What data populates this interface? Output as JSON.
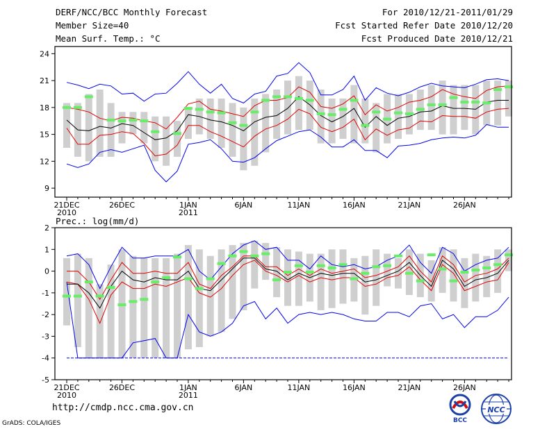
{
  "header": {
    "title": "DERF/NCC/BCC Monthly Forecast",
    "member_size": "Member Size=40",
    "variable": "Mean Surf. Temp.: °C",
    "period": "For 2010/12/21-2011/01/29",
    "started": "Fcst Started Refer Date 2010/12/20",
    "produced": "Fcst Produced Date 2010/12/21"
  },
  "footer": {
    "url": "http://cmdp.ncc.cma.gov.cn",
    "credit": "GrADS: COLA/IGES"
  },
  "logos": {
    "bcc": "BCC",
    "ncc": "NCC"
  },
  "colors": {
    "box": "#cfcfcf",
    "obs": "#66ee66",
    "mean": "#000000",
    "spread": "#e00000",
    "extreme": "#0000ee"
  },
  "chart_data": [
    {
      "type": "line",
      "title": "Mean Surf. Temp.: °C",
      "x_labels": [
        {
          "day": 0,
          "label": "21DEC",
          "sub": "2010"
        },
        {
          "day": 5,
          "label": "26DEC",
          "sub": ""
        },
        {
          "day": 11,
          "label": "1JAN",
          "sub": "2011"
        },
        {
          "day": 16,
          "label": "6JAN",
          "sub": ""
        },
        {
          "day": 21,
          "label": "11JAN",
          "sub": ""
        },
        {
          "day": 26,
          "label": "16JAN",
          "sub": ""
        },
        {
          "day": 31,
          "label": "21JAN",
          "sub": ""
        },
        {
          "day": 36,
          "label": "26JAN",
          "sub": ""
        }
      ],
      "yticks": [
        9,
        12,
        15,
        18,
        21,
        24
      ],
      "ylim": [
        8,
        24.8
      ],
      "series": {
        "box_high": [
          18.5,
          18.5,
          19.5,
          20.0,
          18.5,
          17.5,
          17.5,
          17.5,
          17.0,
          17.0,
          16.5,
          18.0,
          19.0,
          19.0,
          19.0,
          18.5,
          18.0,
          19.0,
          19.5,
          20.0,
          21.0,
          21.5,
          21.0,
          20.0,
          19.0,
          19.0,
          20.5,
          19.0,
          18.5,
          19.5,
          19.5,
          19.5,
          20.0,
          20.5,
          21.0,
          20.5,
          20.5,
          20.5,
          21.0,
          21.0,
          21.0
        ],
        "box_low": [
          13.5,
          12.5,
          12.0,
          12.5,
          12.5,
          14.0,
          15.0,
          14.0,
          12.0,
          11.5,
          12.5,
          14.5,
          15.0,
          14.5,
          13.5,
          12.5,
          11.0,
          11.5,
          13.0,
          14.5,
          15.0,
          15.5,
          15.5,
          14.0,
          14.0,
          14.5,
          14.0,
          14.0,
          13.0,
          14.0,
          14.5,
          15.0,
          15.5,
          15.5,
          15.0,
          15.0,
          15.5,
          15.0,
          16.0,
          16.0,
          17.0
        ],
        "obs": [
          18.0,
          18.0,
          19.2,
          null,
          16.6,
          16.5,
          16.6,
          16.5,
          15.3,
          null,
          15.1,
          17.9,
          17.8,
          17.5,
          17.4,
          16.3,
          16.0,
          17.5,
          18.8,
          19.2,
          19.2,
          19.0,
          18.8,
          17.3,
          17.2,
          17.8,
          18.8,
          16.0,
          17.5,
          16.7,
          17.4,
          17.3,
          17.8,
          18.3,
          18.3,
          19.1,
          18.6,
          18.6,
          18.5,
          20.0,
          20.3
        ],
        "max": [
          20.8,
          20.5,
          20.1,
          20.6,
          20.4,
          19.5,
          19.6,
          18.7,
          19.5,
          19.6,
          20.7,
          22.0,
          20.6,
          19.6,
          20.6,
          19.0,
          18.5,
          19.5,
          19.8,
          21.5,
          21.8,
          23.0,
          21.9,
          19.4,
          19.4,
          20.0,
          21.5,
          18.8,
          20.2,
          19.6,
          19.3,
          19.7,
          20.3,
          20.7,
          20.4,
          20.3,
          20.2,
          20.6,
          21.1,
          21.2,
          21.0
        ],
        "upper": [
          18.0,
          17.8,
          17.5,
          16.8,
          16.5,
          16.9,
          16.8,
          16.5,
          16.3,
          15.6,
          16.9,
          18.4,
          18.7,
          17.8,
          17.6,
          17.3,
          17.0,
          18.2,
          18.8,
          18.8,
          19.1,
          20.3,
          19.7,
          18.1,
          17.9,
          18.4,
          19.3,
          17.2,
          18.3,
          17.6,
          18.0,
          18.6,
          18.8,
          19.2,
          20.0,
          19.5,
          19.2,
          19.0,
          19.9,
          20.3,
          20.4
        ],
        "mean": [
          16.6,
          15.5,
          15.4,
          15.9,
          15.7,
          16.2,
          16.0,
          15.2,
          14.4,
          14.6,
          15.4,
          17.2,
          17.0,
          16.6,
          16.4,
          16.0,
          15.4,
          16.4,
          16.9,
          17.1,
          17.9,
          19.2,
          18.3,
          17.1,
          16.4,
          17.0,
          17.9,
          15.8,
          17.0,
          16.0,
          16.8,
          17.0,
          17.5,
          17.6,
          18.2,
          17.9,
          17.9,
          17.8,
          18.6,
          18.8,
          18.8
        ],
        "lower": [
          15.7,
          13.9,
          13.9,
          14.9,
          15.0,
          15.3,
          15.1,
          14.0,
          12.6,
          12.8,
          13.8,
          16.0,
          16.0,
          15.3,
          14.8,
          14.2,
          13.6,
          14.8,
          15.6,
          16.0,
          16.7,
          17.8,
          17.3,
          15.8,
          15.3,
          15.8,
          16.7,
          14.4,
          15.6,
          14.9,
          15.5,
          15.7,
          16.5,
          16.4,
          17.1,
          17.0,
          17.0,
          16.8,
          17.5,
          17.8,
          17.9
        ],
        "min": [
          11.7,
          11.3,
          11.7,
          13.0,
          13.3,
          13.0,
          13.4,
          13.8,
          11.0,
          9.7,
          10.9,
          13.9,
          14.1,
          14.4,
          13.4,
          12.0,
          11.9,
          12.4,
          13.4,
          14.3,
          14.8,
          15.3,
          15.5,
          14.7,
          13.6,
          13.6,
          14.4,
          13.2,
          13.2,
          12.4,
          13.7,
          13.8,
          14.0,
          14.4,
          14.6,
          14.7,
          14.6,
          14.9,
          16.1,
          15.8,
          15.8
        ]
      }
    },
    {
      "type": "line",
      "title": "Prec.: log(mm/d)",
      "x_labels": [
        {
          "day": 0,
          "label": "21DEC",
          "sub": "2010"
        },
        {
          "day": 5,
          "label": "26DEC",
          "sub": ""
        },
        {
          "day": 11,
          "label": "1JAN",
          "sub": "2011"
        },
        {
          "day": 16,
          "label": "6JAN",
          "sub": ""
        },
        {
          "day": 21,
          "label": "11JAN",
          "sub": ""
        },
        {
          "day": 26,
          "label": "16JAN",
          "sub": ""
        },
        {
          "day": 31,
          "label": "21JAN",
          "sub": ""
        },
        {
          "day": 36,
          "label": "26JAN",
          "sub": ""
        }
      ],
      "yticks": [
        -5,
        -4,
        -3,
        -2,
        -1,
        0,
        1,
        2
      ],
      "ylim": [
        -5,
        2
      ],
      "series": {
        "box_high": [
          0.6,
          0.8,
          0.6,
          -0.6,
          0.3,
          1.0,
          0.7,
          0.6,
          0.6,
          0.6,
          0.8,
          1.2,
          1.0,
          0.7,
          1.0,
          1.2,
          1.3,
          1.4,
          1.3,
          1.1,
          1.0,
          0.9,
          0.8,
          0.8,
          1.0,
          1.0,
          0.6,
          0.7,
          1.0,
          0.8,
          0.6,
          1.0,
          0.8,
          0.5,
          1.1,
          1.0,
          0.6,
          0.8,
          0.7,
          1.0,
          1.0
        ],
        "box_low": [
          -2.5,
          -3.5,
          -4.0,
          -4.0,
          -4.0,
          -4.0,
          -4.0,
          -4.0,
          -4.0,
          -4.0,
          -4.0,
          -3.6,
          -3.5,
          -3.0,
          -2.8,
          -2.2,
          -1.8,
          -0.8,
          -0.4,
          -1.2,
          -1.6,
          -1.6,
          -1.4,
          -1.8,
          -1.7,
          -1.5,
          -1.4,
          -2.0,
          -1.6,
          -0.7,
          -0.8,
          -1.1,
          -1.2,
          -1.4,
          -1.0,
          -1.4,
          -1.7,
          -1.4,
          -1.2,
          -1.0,
          0.0
        ],
        "obs": [
          -1.15,
          -1.15,
          -0.5,
          -1.15,
          -0.75,
          -1.55,
          -1.4,
          -1.3,
          -0.5,
          -0.3,
          0.65,
          -0.35,
          -0.8,
          -0.35,
          0.35,
          0.7,
          0.9,
          0.7,
          0.8,
          -0.4,
          -0.05,
          0.25,
          -0.05,
          0.25,
          0.15,
          0.3,
          -0.35,
          -0.1,
          0.2,
          0.25,
          0.7,
          -0.1,
          -0.45,
          0.75,
          0.1,
          -0.45,
          -0.05,
          0.05,
          0.15,
          0.3,
          0.75
        ],
        "max": [
          0.7,
          0.8,
          0.3,
          -0.8,
          0.2,
          1.1,
          0.6,
          0.6,
          0.7,
          0.7,
          0.7,
          1.0,
          0.0,
          -0.4,
          0.2,
          0.8,
          1.2,
          1.4,
          1.0,
          1.1,
          0.5,
          0.5,
          0.1,
          0.7,
          0.3,
          0.2,
          0.3,
          0.1,
          0.2,
          0.5,
          0.7,
          1.2,
          0.4,
          -0.1,
          1.1,
          0.8,
          0.0,
          0.3,
          0.5,
          0.6,
          1.1
        ],
        "upper": [
          0.0,
          0.0,
          -0.5,
          -1.3,
          -0.4,
          0.4,
          -0.1,
          -0.1,
          0.0,
          -0.1,
          -0.1,
          0.4,
          -0.6,
          -0.8,
          -0.2,
          0.2,
          0.7,
          0.7,
          0.2,
          0.2,
          -0.2,
          0.1,
          -0.2,
          0.1,
          -0.1,
          0.0,
          0.1,
          -0.3,
          -0.2,
          0.0,
          0.2,
          0.7,
          0.0,
          -0.5,
          0.7,
          0.3,
          -0.5,
          -0.2,
          -0.1,
          0.1,
          0.6
        ],
        "mean": [
          -0.6,
          -0.6,
          -1.0,
          -1.7,
          -0.7,
          0.0,
          -0.4,
          -0.5,
          -0.3,
          -0.4,
          -0.4,
          0.0,
          -0.8,
          -0.9,
          -0.4,
          0.1,
          0.6,
          0.6,
          0.1,
          0.0,
          -0.4,
          -0.1,
          -0.3,
          -0.1,
          -0.2,
          -0.1,
          -0.1,
          -0.5,
          -0.4,
          -0.2,
          0.0,
          0.4,
          -0.2,
          -0.7,
          0.5,
          0.1,
          -0.7,
          -0.4,
          -0.3,
          -0.1,
          0.5
        ],
        "lower": [
          -0.5,
          -0.6,
          -1.3,
          -2.4,
          -1.1,
          -0.5,
          -0.8,
          -0.8,
          -0.6,
          -0.7,
          -0.5,
          -0.3,
          -1.0,
          -1.2,
          -0.8,
          -0.2,
          0.3,
          0.5,
          0.0,
          -0.2,
          -0.5,
          -0.2,
          -0.5,
          -0.3,
          -0.4,
          -0.3,
          -0.3,
          -0.7,
          -0.6,
          -0.3,
          -0.2,
          0.2,
          -0.4,
          -0.9,
          0.3,
          -0.1,
          -0.9,
          -0.7,
          -0.5,
          -0.4,
          0.4
        ],
        "min": [
          -0.5,
          -4.0,
          -4.0,
          -4.0,
          -4.0,
          -4.0,
          -3.3,
          -3.2,
          -3.1,
          -4.0,
          -4.0,
          -2.0,
          -2.8,
          -3.0,
          -2.8,
          -2.4,
          -1.6,
          -1.4,
          -2.2,
          -1.7,
          -2.4,
          -2.0,
          -1.9,
          -2.0,
          -1.9,
          -2.0,
          -2.2,
          -2.3,
          -2.3,
          -1.9,
          -1.9,
          -2.1,
          -1.6,
          -1.5,
          -2.2,
          -2.0,
          -2.6,
          -2.1,
          -2.1,
          -1.8,
          -1.2
        ],
        "floor": [
          -4,
          -4,
          -4,
          -4,
          -4,
          -4,
          -4,
          -4,
          -4,
          -4,
          -4,
          -4,
          -4,
          -4,
          -4,
          -4,
          -4,
          -4,
          -4,
          -4,
          -4,
          -4,
          -4,
          -4,
          -4,
          -4,
          -4,
          -4,
          -4,
          -4,
          -4,
          -4,
          -4,
          -4,
          -4,
          -4,
          -4,
          -4,
          -4,
          -4,
          -4
        ]
      }
    }
  ]
}
